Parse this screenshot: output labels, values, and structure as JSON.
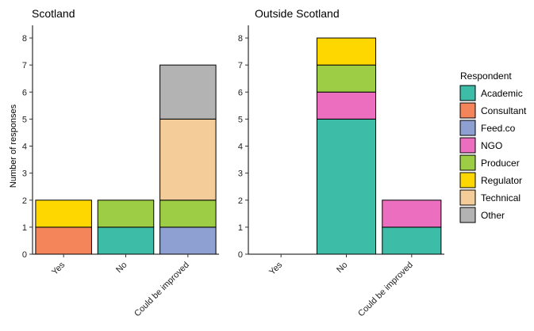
{
  "chart_data": [
    {
      "type": "bar",
      "stacked": true,
      "title": "Scotland",
      "ylabel": "Number of responses",
      "categories": [
        "Yes",
        "No",
        "Could be improved"
      ],
      "ylim": [
        0,
        8
      ],
      "yticks": [
        0,
        1,
        2,
        3,
        4,
        5,
        6,
        7,
        8
      ],
      "series": [
        {
          "name": "Academic",
          "values": [
            0,
            1,
            0
          ]
        },
        {
          "name": "Consultant",
          "values": [
            1,
            0,
            0
          ]
        },
        {
          "name": "Feed.co",
          "values": [
            0,
            0,
            1
          ]
        },
        {
          "name": "NGO",
          "values": [
            0,
            0,
            0
          ]
        },
        {
          "name": "Producer",
          "values": [
            0,
            1,
            1
          ]
        },
        {
          "name": "Regulator",
          "values": [
            1,
            0,
            0
          ]
        },
        {
          "name": "Technical",
          "values": [
            0,
            0,
            3
          ]
        },
        {
          "name": "Other",
          "values": [
            0,
            0,
            2
          ]
        }
      ]
    },
    {
      "type": "bar",
      "stacked": true,
      "title": "Outside Scotland",
      "categories": [
        "Yes",
        "No",
        "Could be improved"
      ],
      "ylim": [
        0,
        8
      ],
      "yticks": [
        0,
        1,
        2,
        3,
        4,
        5,
        6,
        7,
        8
      ],
      "series": [
        {
          "name": "Academic",
          "values": [
            0,
            5,
            1
          ]
        },
        {
          "name": "Consultant",
          "values": [
            0,
            0,
            0
          ]
        },
        {
          "name": "Feed.co",
          "values": [
            0,
            0,
            0
          ]
        },
        {
          "name": "NGO",
          "values": [
            0,
            1,
            1
          ]
        },
        {
          "name": "Producer",
          "values": [
            0,
            1,
            0
          ]
        },
        {
          "name": "Regulator",
          "values": [
            0,
            1,
            0
          ]
        },
        {
          "name": "Technical",
          "values": [
            0,
            0,
            0
          ]
        },
        {
          "name": "Other",
          "values": [
            0,
            0,
            0
          ]
        }
      ]
    }
  ],
  "legend": {
    "title": "Respondent",
    "position": "right",
    "items": [
      {
        "name": "Academic",
        "color": "#3DBDA7"
      },
      {
        "name": "Consultant",
        "color": "#F4845A"
      },
      {
        "name": "Feed.co",
        "color": "#8E9FD1"
      },
      {
        "name": "NGO",
        "color": "#EC6FBF"
      },
      {
        "name": "Producer",
        "color": "#9DCC45"
      },
      {
        "name": "Regulator",
        "color": "#FFD700"
      },
      {
        "name": "Technical",
        "color": "#F4CC99"
      },
      {
        "name": "Other",
        "color": "#B3B3B3"
      }
    ]
  },
  "grid": false
}
